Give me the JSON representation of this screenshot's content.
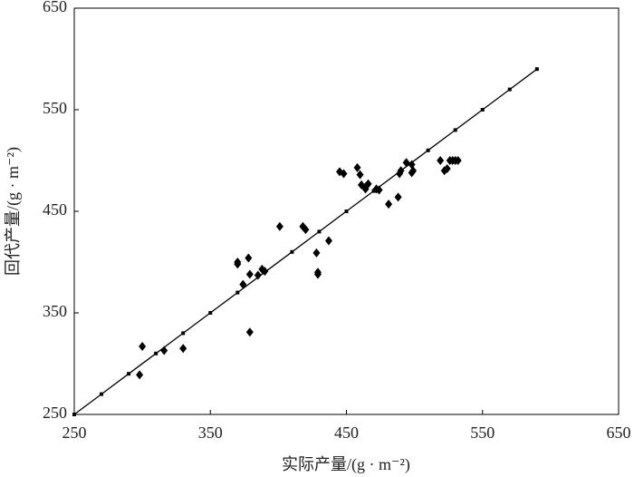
{
  "chart_data": {
    "type": "scatter",
    "xlabel": "实际产量/(g · m⁻²)",
    "ylabel": "回代产量/(g · m⁻²)",
    "xlim": [
      250,
      650
    ],
    "xticks": [
      250,
      350,
      450,
      550,
      650
    ],
    "ylim": [
      250,
      650
    ],
    "yticks": [
      250,
      350,
      450,
      550,
      650
    ],
    "series": [
      {
        "kind": "points",
        "color": "#000000",
        "x": [
          300,
          298,
          316,
          330,
          370,
          370,
          378,
          379,
          374,
          379,
          385,
          388,
          390,
          401,
          418,
          420,
          428,
          437,
          429,
          429,
          445,
          448,
          458,
          460,
          461,
          464,
          466,
          464,
          472,
          474,
          481,
          488,
          489,
          490,
          494,
          498,
          499,
          498,
          519,
          522,
          524,
          526,
          528,
          530,
          532
        ],
        "values": [
          317,
          289,
          313,
          315,
          400,
          398,
          404,
          388,
          378,
          331,
          387,
          393,
          391,
          435,
          435,
          432,
          409,
          421,
          390,
          388,
          489,
          487,
          493,
          486,
          476,
          474,
          477,
          472,
          472,
          471,
          457,
          464,
          487,
          490,
          498,
          496,
          490,
          488,
          500,
          490,
          492,
          500,
          500,
          500,
          500
        ]
      },
      {
        "kind": "line",
        "color": "#000000",
        "x": [
          250,
          270,
          290,
          310,
          330,
          350,
          370,
          390,
          410,
          430,
          450,
          470,
          490,
          510,
          530,
          550,
          570,
          590
        ],
        "values": [
          250,
          270,
          290,
          310,
          330,
          350,
          370,
          390,
          410,
          430,
          450,
          470,
          490,
          510,
          530,
          550,
          570,
          590
        ]
      }
    ]
  }
}
